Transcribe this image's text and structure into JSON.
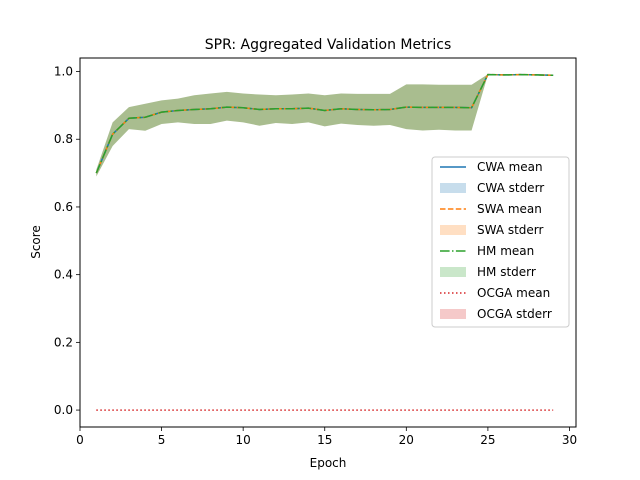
{
  "chart_data": {
    "type": "line",
    "title": "SPR: Aggregated Validation Metrics",
    "xlabel": "Epoch",
    "ylabel": "Score",
    "xlim": [
      0.0,
      30.4
    ],
    "ylim": [
      -0.05,
      1.04
    ],
    "xticks": [
      0,
      5,
      10,
      15,
      20,
      25,
      30
    ],
    "yticks": [
      0.0,
      0.2,
      0.4,
      0.6,
      0.8,
      1.0
    ],
    "xtick_labels": [
      "0",
      "5",
      "10",
      "15",
      "20",
      "25",
      "30"
    ],
    "ytick_labels": [
      "0.0",
      "0.2",
      "0.4",
      "0.6",
      "0.8",
      "1.0"
    ],
    "grid": false,
    "legend_position": "center-right",
    "x": [
      1,
      2,
      3,
      4,
      5,
      6,
      7,
      8,
      9,
      10,
      11,
      12,
      13,
      14,
      15,
      16,
      17,
      18,
      19,
      20,
      21,
      22,
      23,
      24,
      25,
      26,
      27,
      28,
      29
    ],
    "band": {
      "upper": [
        0.71,
        0.85,
        0.895,
        0.905,
        0.915,
        0.92,
        0.93,
        0.935,
        0.94,
        0.935,
        0.932,
        0.93,
        0.932,
        0.935,
        0.93,
        0.935,
        0.934,
        0.934,
        0.934,
        0.962,
        0.962,
        0.961,
        0.961,
        0.961,
        0.992,
        0.991,
        0.991,
        0.99,
        0.99
      ],
      "lower": [
        0.69,
        0.78,
        0.83,
        0.825,
        0.845,
        0.85,
        0.845,
        0.845,
        0.855,
        0.85,
        0.84,
        0.848,
        0.845,
        0.85,
        0.838,
        0.846,
        0.842,
        0.84,
        0.842,
        0.83,
        0.826,
        0.828,
        0.826,
        0.826,
        0.99,
        0.99,
        0.99,
        0.99,
        0.99
      ]
    },
    "series": [
      {
        "name": "CWA mean",
        "color": "#1f77b4",
        "style": "solid",
        "values": [
          0.7,
          0.815,
          0.862,
          0.865,
          0.88,
          0.885,
          0.888,
          0.89,
          0.895,
          0.893,
          0.888,
          0.89,
          0.89,
          0.892,
          0.885,
          0.89,
          0.888,
          0.887,
          0.888,
          0.895,
          0.894,
          0.894,
          0.894,
          0.893,
          0.991,
          0.99,
          0.991,
          0.99,
          0.989
        ]
      },
      {
        "name": "SWA mean",
        "color": "#ff7f0e",
        "style": "dashed",
        "values": [
          0.7,
          0.815,
          0.862,
          0.865,
          0.88,
          0.885,
          0.888,
          0.89,
          0.895,
          0.893,
          0.888,
          0.89,
          0.89,
          0.892,
          0.885,
          0.89,
          0.888,
          0.887,
          0.888,
          0.895,
          0.894,
          0.894,
          0.894,
          0.893,
          0.991,
          0.99,
          0.991,
          0.99,
          0.989
        ]
      },
      {
        "name": "HM mean",
        "color": "#2ca02c",
        "style": "dashdot",
        "values": [
          0.7,
          0.815,
          0.862,
          0.865,
          0.88,
          0.885,
          0.888,
          0.89,
          0.895,
          0.893,
          0.888,
          0.89,
          0.89,
          0.892,
          0.885,
          0.89,
          0.888,
          0.887,
          0.888,
          0.895,
          0.894,
          0.894,
          0.894,
          0.893,
          0.991,
          0.99,
          0.991,
          0.99,
          0.989
        ]
      },
      {
        "name": "OCGA mean",
        "color": "#d62728",
        "style": "dotted",
        "values": [
          0,
          0,
          0,
          0,
          0,
          0,
          0,
          0,
          0,
          0,
          0,
          0,
          0,
          0,
          0,
          0,
          0,
          0,
          0,
          0,
          0,
          0,
          0,
          0,
          0,
          0,
          0,
          0,
          0
        ]
      }
    ],
    "legend": [
      {
        "label": "CWA mean",
        "kind": "line",
        "color": "#1f77b4",
        "style": "solid"
      },
      {
        "label": "CWA stderr",
        "kind": "patch",
        "color": "#1f77b4"
      },
      {
        "label": "SWA mean",
        "kind": "line",
        "color": "#ff7f0e",
        "style": "dashed"
      },
      {
        "label": "SWA stderr",
        "kind": "patch",
        "color": "#ff7f0e"
      },
      {
        "label": "HM mean",
        "kind": "line",
        "color": "#2ca02c",
        "style": "dashdot"
      },
      {
        "label": "HM stderr",
        "kind": "patch",
        "color": "#2ca02c"
      },
      {
        "label": "OCGA mean",
        "kind": "line",
        "color": "#d62728",
        "style": "dotted"
      },
      {
        "label": "OCGA stderr",
        "kind": "patch",
        "color": "#d62728"
      }
    ],
    "band_color": "#a9bd8f"
  }
}
